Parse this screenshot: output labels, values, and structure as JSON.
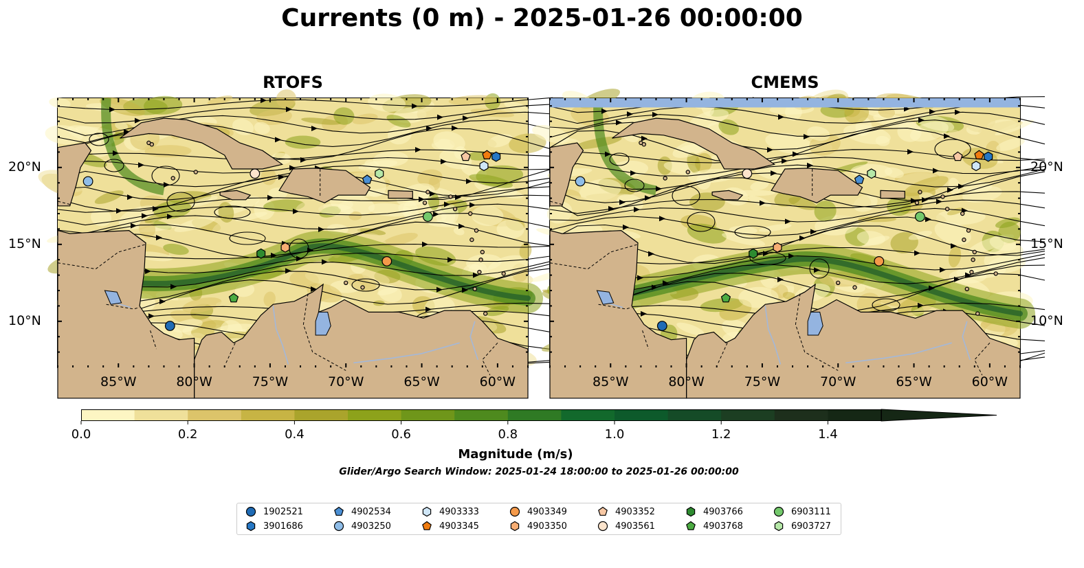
{
  "title": "Currents (0 m) - 2025-01-26 00:00:00",
  "panels": [
    {
      "title": "RTOFS"
    },
    {
      "title": "CMEMS"
    }
  ],
  "map": {
    "lon_range": [
      -89,
      -58
    ],
    "lat_range": [
      7,
      24.5
    ],
    "x_ticks": [
      {
        "lon": -85,
        "label": "85°W"
      },
      {
        "lon": -80,
        "label": "80°W"
      },
      {
        "lon": -75,
        "label": "75°W"
      },
      {
        "lon": -70,
        "label": "70°W"
      },
      {
        "lon": -65,
        "label": "65°W"
      },
      {
        "lon": -60,
        "label": "60°W"
      }
    ],
    "y_ticks": [
      {
        "lat": 20,
        "label": "20°N"
      },
      {
        "lat": 15,
        "label": "15°N"
      },
      {
        "lat": 10,
        "label": "10°N"
      }
    ],
    "colors": {
      "land": "#d2b48c",
      "water_bodies": "#94b4e0",
      "rivers": "#a4b8d8",
      "streamlines": "#000000"
    }
  },
  "colorbar": {
    "label": "Magnitude (m/s)",
    "ticks": [
      "0.0",
      "0.2",
      "0.4",
      "0.6",
      "0.8",
      "1.0",
      "1.2",
      "1.4"
    ],
    "min": 0.0,
    "max": 1.5,
    "extend": "max",
    "colors": [
      "#fdf6c3",
      "#efe09a",
      "#dcc46a",
      "#c7b444",
      "#aaa42c",
      "#8da21b",
      "#6f961a",
      "#4e8a1e",
      "#2f7a24",
      "#12692c",
      "#0d5a2b",
      "#154b27",
      "#1c3e22",
      "#1d2f1c",
      "#152715"
    ]
  },
  "search_window": "Glider/Argo Search Window: 2025-01-24 18:00:00 to 2025-01-26 00:00:00",
  "legend": [
    {
      "id": "1902521",
      "marker": "circle",
      "color": "#1f6bb5",
      "lon": -81.6,
      "lat": 9.7
    },
    {
      "id": "3901686",
      "marker": "hexagon",
      "color": "#2677c4",
      "lon": -60.1,
      "lat": 20.7
    },
    {
      "id": "4902534",
      "marker": "pentagon",
      "color": "#4a8fd4",
      "lon": -68.6,
      "lat": 19.2
    },
    {
      "id": "4903250",
      "marker": "circle",
      "color": "#8fbde8",
      "lon": -87.0,
      "lat": 19.1
    },
    {
      "id": "4903333",
      "marker": "hexagon",
      "color": "#cfe6f7",
      "lon": -60.9,
      "lat": 20.1
    },
    {
      "id": "4903345",
      "marker": "pentagon",
      "color": "#f07c10",
      "lon": -60.7,
      "lat": 20.8
    },
    {
      "id": "4903349",
      "marker": "circle",
      "color": "#f59a4a",
      "lon": -67.3,
      "lat": 13.9
    },
    {
      "id": "4903350",
      "marker": "hexagon",
      "color": "#f7ad73",
      "lon": -74.0,
      "lat": 14.8
    },
    {
      "id": "4903352",
      "marker": "pentagon",
      "color": "#f8c8a4",
      "lon": -62.1,
      "lat": 20.7
    },
    {
      "id": "4903561",
      "marker": "circle",
      "color": "#fce4cc",
      "lon": -76.0,
      "lat": 19.6
    },
    {
      "id": "4903766",
      "marker": "hexagon",
      "color": "#2e8b30",
      "lon": -75.6,
      "lat": 14.4
    },
    {
      "id": "4903768",
      "marker": "pentagon",
      "color": "#4cab42",
      "lon": -77.4,
      "lat": 11.5
    },
    {
      "id": "6903111",
      "marker": "circle",
      "color": "#74c96c",
      "lon": -64.6,
      "lat": 16.8
    },
    {
      "id": "6903727",
      "marker": "hexagon",
      "color": "#b6e8a8",
      "lon": -67.8,
      "lat": 19.6
    }
  ]
}
